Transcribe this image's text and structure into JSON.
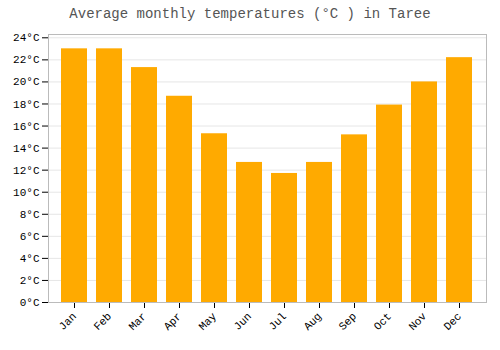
{
  "chart_data": {
    "type": "bar",
    "title": "Average monthly temperatures (°C ) in Taree",
    "categories": [
      "Jan",
      "Feb",
      "Mar",
      "Apr",
      "May",
      "Jun",
      "Jul",
      "Aug",
      "Sep",
      "Oct",
      "Nov",
      "Dec"
    ],
    "values": [
      23.0,
      23.0,
      21.3,
      18.7,
      15.3,
      12.7,
      11.7,
      12.7,
      15.2,
      17.9,
      20.0,
      22.2
    ],
    "color": "#FFAA00",
    "ylim": [
      0,
      24.3
    ],
    "yticks": [
      {
        "value": 0,
        "label": "0°C"
      },
      {
        "value": 2,
        "label": "2°C"
      },
      {
        "value": 4,
        "label": "4°C"
      },
      {
        "value": 6,
        "label": "6°C"
      },
      {
        "value": 8,
        "label": "8°C"
      },
      {
        "value": 10,
        "label": "10°C"
      },
      {
        "value": 12,
        "label": "12°C"
      },
      {
        "value": 14,
        "label": "14°C"
      },
      {
        "value": 16,
        "label": "16°C"
      },
      {
        "value": 18,
        "label": "18°C"
      },
      {
        "value": 20,
        "label": "20°C"
      },
      {
        "value": 22,
        "label": "22°C"
      },
      {
        "value": 24,
        "label": "24°C"
      }
    ],
    "grid": true
  }
}
